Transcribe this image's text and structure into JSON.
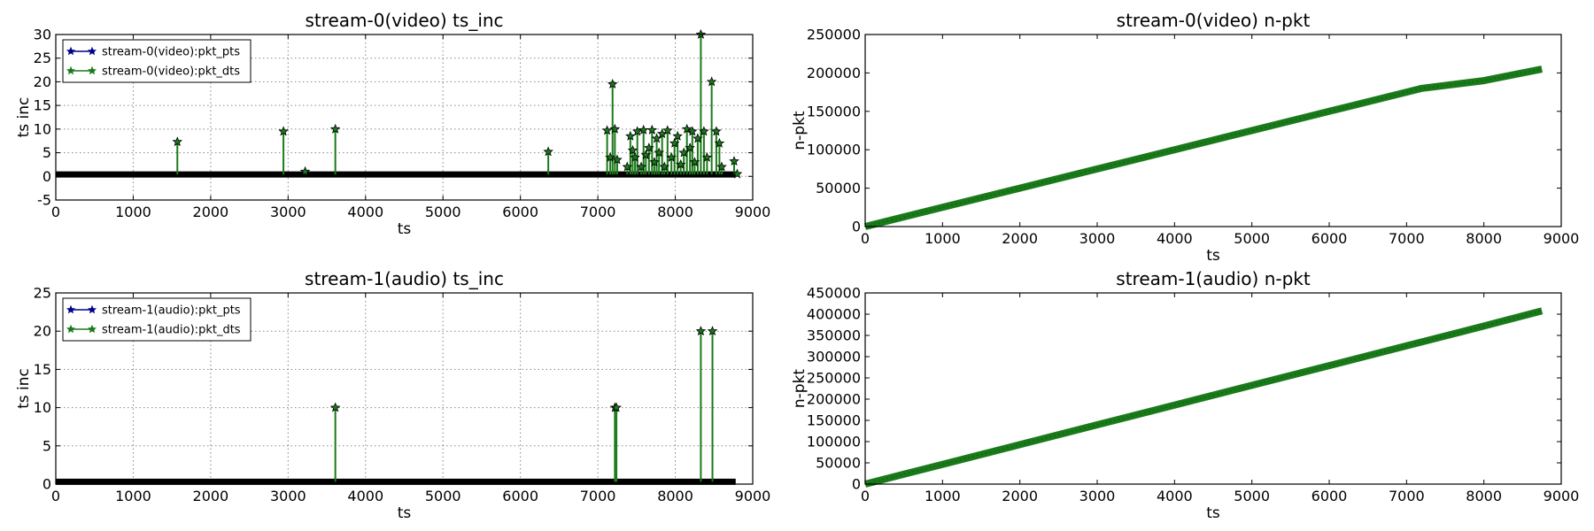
{
  "chart_data": [
    {
      "id": "p1",
      "type": "line",
      "title": "stream-0(video) ts_inc",
      "xlabel": "ts",
      "ylabel": "ts inc",
      "xlim": [
        0,
        9000
      ],
      "ylim": [
        -5,
        30
      ],
      "xticks": [
        0,
        1000,
        2000,
        3000,
        4000,
        5000,
        6000,
        7000,
        8000,
        9000
      ],
      "yticks": [
        -5,
        0,
        5,
        10,
        15,
        20,
        25,
        30
      ],
      "grid": true,
      "legend": "top-left",
      "baseline": {
        "y": 0.4,
        "x": [
          0,
          8780
        ]
      },
      "series": [
        {
          "name": "stream-0(video):pkt_pts",
          "color": "#00008b",
          "marker": "star"
        },
        {
          "name": "stream-0(video):pkt_dts",
          "color": "#1a7a1a",
          "marker": "star",
          "spikes": [
            [
              1570,
              7.3
            ],
            [
              2940,
              9.5
            ],
            [
              3220,
              1.0
            ],
            [
              3610,
              10.0
            ],
            [
              6360,
              5.2
            ],
            [
              7120,
              9.7
            ],
            [
              7160,
              4.0
            ],
            [
              7190,
              19.5
            ],
            [
              7220,
              10.0
            ],
            [
              7250,
              3.5
            ],
            [
              7380,
              2.0
            ],
            [
              7420,
              8.5
            ],
            [
              7450,
              5.5
            ],
            [
              7480,
              4.0
            ],
            [
              7510,
              9.5
            ],
            [
              7560,
              2.0
            ],
            [
              7590,
              9.8
            ],
            [
              7620,
              4.5
            ],
            [
              7660,
              6.0
            ],
            [
              7700,
              9.8
            ],
            [
              7730,
              3.0
            ],
            [
              7760,
              8.0
            ],
            [
              7790,
              5.0
            ],
            [
              7830,
              9.0
            ],
            [
              7860,
              2.0
            ],
            [
              7900,
              9.7
            ],
            [
              7950,
              4.0
            ],
            [
              7990,
              7.0
            ],
            [
              8030,
              8.5
            ],
            [
              8070,
              2.5
            ],
            [
              8110,
              5.0
            ],
            [
              8150,
              10.0
            ],
            [
              8190,
              6.0
            ],
            [
              8220,
              9.5
            ],
            [
              8250,
              3.0
            ],
            [
              8290,
              8.0
            ],
            [
              8330,
              30.0
            ],
            [
              8370,
              9.5
            ],
            [
              8410,
              4.0
            ],
            [
              8470,
              20.0
            ],
            [
              8530,
              9.5
            ],
            [
              8570,
              7.0
            ],
            [
              8600,
              2.0
            ],
            [
              8760,
              3.2
            ],
            [
              8800,
              0.5
            ]
          ]
        }
      ]
    },
    {
      "id": "p2",
      "type": "line",
      "title": "stream-0(video) n-pkt",
      "xlabel": "ts",
      "ylabel": "n-pkt",
      "xlim": [
        0,
        9000
      ],
      "ylim": [
        0,
        250000
      ],
      "xticks": [
        0,
        1000,
        2000,
        3000,
        4000,
        5000,
        6000,
        7000,
        8000,
        9000
      ],
      "yticks": [
        0,
        50000,
        100000,
        150000,
        200000,
        250000
      ],
      "grid": false,
      "series": [
        {
          "color": "#1a7a1a",
          "marker": "x",
          "x": [
            0,
            1000,
            2000,
            3000,
            4000,
            5000,
            6000,
            7000,
            7200,
            8000,
            8750
          ],
          "y": [
            0,
            25000,
            50000,
            75000,
            100000,
            125000,
            150000,
            175000,
            180000,
            190000,
            205000
          ]
        }
      ]
    },
    {
      "id": "p3",
      "type": "line",
      "title": "stream-1(audio) ts_inc",
      "xlabel": "ts",
      "ylabel": "ts inc",
      "xlim": [
        0,
        9000
      ],
      "ylim": [
        0,
        25
      ],
      "xticks": [
        0,
        1000,
        2000,
        3000,
        4000,
        5000,
        6000,
        7000,
        8000,
        9000
      ],
      "yticks": [
        0,
        5,
        10,
        15,
        20,
        25
      ],
      "grid": true,
      "legend": "top-left",
      "baseline": {
        "y": 0.3,
        "x": [
          0,
          8780
        ]
      },
      "series": [
        {
          "name": "stream-1(audio):pkt_pts",
          "color": "#00008b",
          "marker": "star"
        },
        {
          "name": "stream-1(audio):pkt_dts",
          "color": "#1a7a1a",
          "marker": "star",
          "spikes": [
            [
              3610,
              10.0
            ],
            [
              7220,
              10.0
            ],
            [
              7240,
              10.0
            ],
            [
              8330,
              20.0
            ],
            [
              8480,
              20.0
            ]
          ]
        }
      ]
    },
    {
      "id": "p4",
      "type": "line",
      "title": "stream-1(audio) n-pkt",
      "xlabel": "ts",
      "ylabel": "n-pkt",
      "xlim": [
        0,
        9000
      ],
      "ylim": [
        0,
        450000
      ],
      "xticks": [
        0,
        1000,
        2000,
        3000,
        4000,
        5000,
        6000,
        7000,
        8000,
        9000
      ],
      "yticks": [
        0,
        50000,
        100000,
        150000,
        200000,
        250000,
        300000,
        350000,
        400000,
        450000
      ],
      "grid": false,
      "series": [
        {
          "color": "#1a7a1a",
          "marker": "x",
          "x": [
            0,
            1000,
            2000,
            3000,
            4000,
            5000,
            6000,
            7000,
            8000,
            8750
          ],
          "y": [
            0,
            46500,
            93000,
            139500,
            186000,
            232500,
            279000,
            325500,
            372000,
            408000
          ]
        }
      ]
    }
  ]
}
